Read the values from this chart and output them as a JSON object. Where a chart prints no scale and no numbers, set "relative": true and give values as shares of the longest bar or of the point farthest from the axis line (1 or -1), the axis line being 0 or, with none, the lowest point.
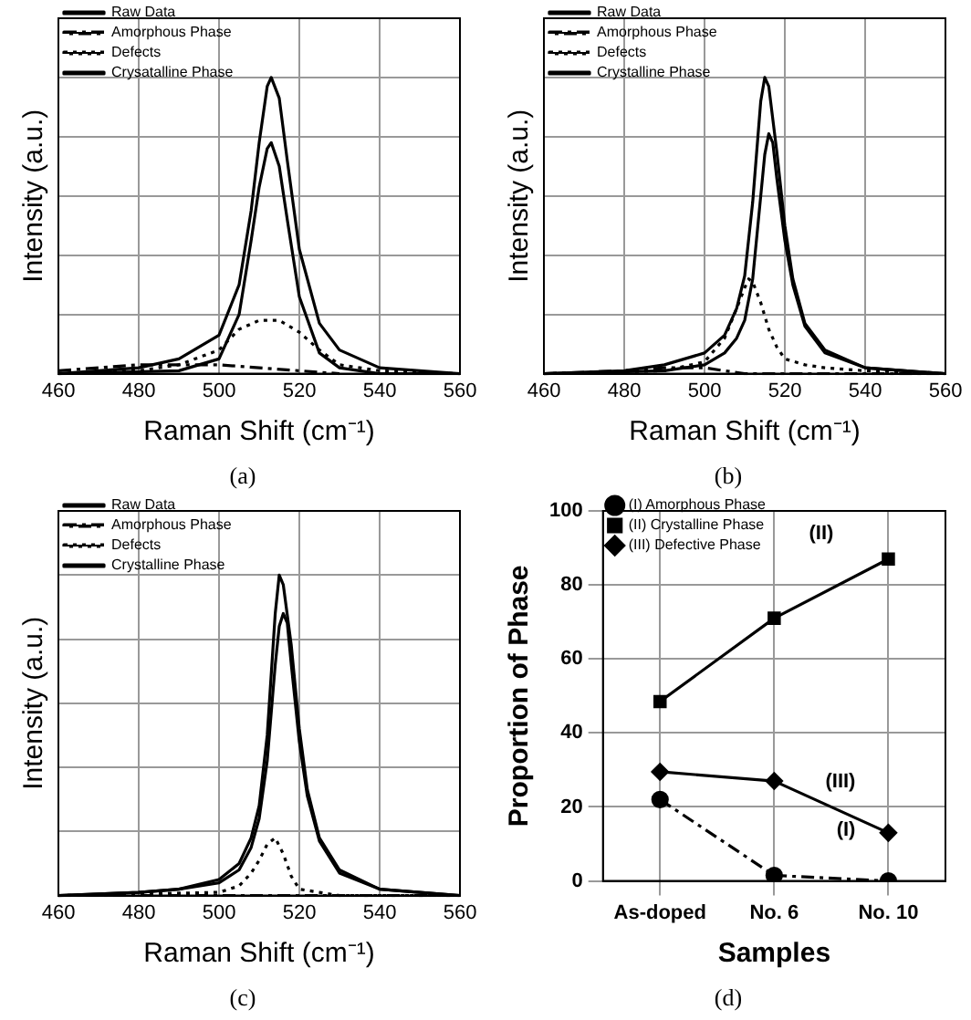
{
  "chart_data": [
    {
      "type": "line",
      "relative": true,
      "xlabel": "Raman Shift (cm⁻¹)",
      "ylabel": "Intensity (a.u.)",
      "xlim": [
        460,
        560
      ],
      "xticks": [
        460,
        480,
        500,
        520,
        540,
        560
      ],
      "grid": true,
      "legend": "top left",
      "marker": "none",
      "annotations": [
        "(a)"
      ],
      "series": [
        {
          "name": "Raw Data",
          "color": "#000000",
          "line_style": "solid",
          "x": [
            460,
            470,
            480,
            490,
            500,
            505,
            508,
            510,
            512,
            513,
            515,
            517,
            520,
            525,
            530,
            540,
            560
          ],
          "values": [
            0,
            0.01,
            0.02,
            0.05,
            0.13,
            0.3,
            0.55,
            0.78,
            0.97,
            1,
            0.93,
            0.72,
            0.42,
            0.17,
            0.08,
            0.02,
            0
          ]
        },
        {
          "name": "Amorphous Phase",
          "color": "#000000",
          "line_style": "dashed",
          "x": [
            460,
            470,
            480,
            490,
            500,
            510,
            520,
            530
          ],
          "values": [
            0.01,
            0.02,
            0.03,
            0.03,
            0.03,
            0.02,
            0.01,
            0
          ]
        },
        {
          "name": "Defects",
          "color": "#000000",
          "line_style": "dotted",
          "x": [
            460,
            480,
            490,
            500,
            505,
            510,
            515,
            520,
            525,
            530,
            540,
            560
          ],
          "values": [
            0,
            0.01,
            0.03,
            0.08,
            0.15,
            0.18,
            0.18,
            0.14,
            0.08,
            0.03,
            0.01,
            0
          ]
        },
        {
          "name": "Crysatalline Phase",
          "color": "#000000",
          "line_style": "solid",
          "x": [
            460,
            490,
            500,
            505,
            508,
            510,
            512,
            513,
            515,
            517,
            520,
            525,
            530,
            540,
            560
          ],
          "values": [
            0,
            0.01,
            0.05,
            0.2,
            0.45,
            0.63,
            0.76,
            0.78,
            0.7,
            0.52,
            0.26,
            0.07,
            0.02,
            0,
            0
          ]
        }
      ]
    },
    {
      "type": "line",
      "relative": true,
      "xlabel": "Raman Shift (cm⁻¹)",
      "ylabel": "Intensity (a.u.)",
      "xlim": [
        460,
        560
      ],
      "xticks": [
        460,
        480,
        500,
        520,
        540,
        560
      ],
      "grid": true,
      "legend": "top left",
      "marker": "none",
      "annotations": [
        "(b)"
      ],
      "series": [
        {
          "name": "Raw Data",
          "color": "#000000",
          "line_style": "solid",
          "x": [
            460,
            480,
            490,
            500,
            505,
            508,
            510,
            512,
            514,
            515,
            516,
            518,
            520,
            522,
            525,
            530,
            540,
            560
          ],
          "values": [
            0,
            0.01,
            0.03,
            0.07,
            0.13,
            0.22,
            0.33,
            0.58,
            0.92,
            1,
            0.97,
            0.75,
            0.5,
            0.32,
            0.17,
            0.08,
            0.02,
            0
          ]
        },
        {
          "name": "Amorphous Phase",
          "color": "#000000",
          "line_style": "dashed",
          "x": [
            460,
            480,
            490,
            500,
            505,
            510,
            520,
            560
          ],
          "values": [
            0,
            0.01,
            0.02,
            0.02,
            0.01,
            0,
            0,
            0
          ]
        },
        {
          "name": "Defects",
          "color": "#000000",
          "line_style": "dotted",
          "x": [
            460,
            490,
            500,
            505,
            508,
            510,
            511,
            512,
            514,
            516,
            518,
            520,
            525,
            530,
            540,
            560
          ],
          "values": [
            0,
            0.01,
            0.04,
            0.12,
            0.22,
            0.29,
            0.32,
            0.31,
            0.24,
            0.15,
            0.09,
            0.05,
            0.03,
            0.02,
            0.01,
            0
          ]
        },
        {
          "name": "Crystalline Phase",
          "color": "#000000",
          "line_style": "solid",
          "x": [
            460,
            490,
            500,
            505,
            508,
            510,
            512,
            514,
            515,
            516,
            517,
            518,
            520,
            522,
            525,
            530,
            540,
            560
          ],
          "values": [
            0,
            0.01,
            0.03,
            0.07,
            0.12,
            0.18,
            0.32,
            0.6,
            0.74,
            0.81,
            0.78,
            0.66,
            0.45,
            0.3,
            0.16,
            0.07,
            0.02,
            0
          ]
        }
      ]
    },
    {
      "type": "line",
      "relative": true,
      "xlabel": "Raman Shift (cm⁻¹)",
      "ylabel": "Intensity (a.u.)",
      "xlim": [
        460,
        560
      ],
      "xticks": [
        460,
        480,
        500,
        520,
        540,
        560
      ],
      "grid": true,
      "legend": "top left",
      "marker": "none",
      "annotations": [
        "(c)"
      ],
      "series": [
        {
          "name": "Raw Data",
          "color": "#000000",
          "line_style": "solid",
          "x": [
            460,
            480,
            490,
            500,
            505,
            508,
            510,
            512,
            514,
            515,
            516,
            518,
            520,
            522,
            525,
            530,
            540,
            560
          ],
          "values": [
            0,
            0.01,
            0.02,
            0.05,
            0.1,
            0.18,
            0.28,
            0.5,
            0.88,
            1,
            0.97,
            0.78,
            0.52,
            0.33,
            0.18,
            0.08,
            0.02,
            0
          ]
        },
        {
          "name": "Amorphous Phase",
          "color": "#000000",
          "line_style": "dashed",
          "x": [
            460,
            500,
            520,
            560
          ],
          "values": [
            0,
            0,
            0,
            0
          ]
        },
        {
          "name": "Defects",
          "color": "#000000",
          "line_style": "dotted",
          "x": [
            460,
            500,
            505,
            508,
            510,
            512,
            514,
            516,
            518,
            520,
            525,
            530,
            560
          ],
          "values": [
            0,
            0.01,
            0.03,
            0.07,
            0.11,
            0.16,
            0.18,
            0.13,
            0.06,
            0.02,
            0.01,
            0,
            0
          ]
        },
        {
          "name": "Crystalline Phase",
          "color": "#000000",
          "line_style": "solid",
          "x": [
            460,
            480,
            490,
            500,
            505,
            508,
            510,
            512,
            514,
            515,
            516,
            517,
            518,
            520,
            522,
            525,
            530,
            540,
            560
          ],
          "values": [
            0,
            0.01,
            0.02,
            0.04,
            0.08,
            0.15,
            0.24,
            0.42,
            0.72,
            0.84,
            0.88,
            0.85,
            0.72,
            0.48,
            0.31,
            0.17,
            0.07,
            0.02,
            0
          ]
        }
      ]
    },
    {
      "type": "line",
      "xlabel": "Samples",
      "ylabel": "Proportion of Phase",
      "categories": [
        "As-doped",
        "No. 6",
        "No. 10"
      ],
      "ylim": [
        0,
        100
      ],
      "yticks": [
        0,
        20,
        40,
        60,
        80,
        100
      ],
      "grid": true,
      "legend": "top left",
      "annotations": [
        "(d)",
        {
          "text": "(II)",
          "x": "No. 10",
          "y": 87
        },
        {
          "text": "(III)",
          "x": "No. 10",
          "y": 13
        },
        {
          "text": "(I)",
          "x": "No. 10",
          "y": 0
        }
      ],
      "series": [
        {
          "name": "(I) Amorphous Phase",
          "color": "#000000",
          "marker": "circle",
          "line_style": "dashed",
          "values": [
            22,
            1.5,
            0
          ]
        },
        {
          "name": "(II) Crystalline Phase",
          "color": "#000000",
          "marker": "square",
          "line_style": "solid",
          "values": [
            48.5,
            71,
            87
          ]
        },
        {
          "name": "(III) Defective Phase",
          "color": "#000000",
          "marker": "diamond",
          "line_style": "solid",
          "values": [
            29.5,
            27,
            13
          ]
        }
      ]
    }
  ]
}
